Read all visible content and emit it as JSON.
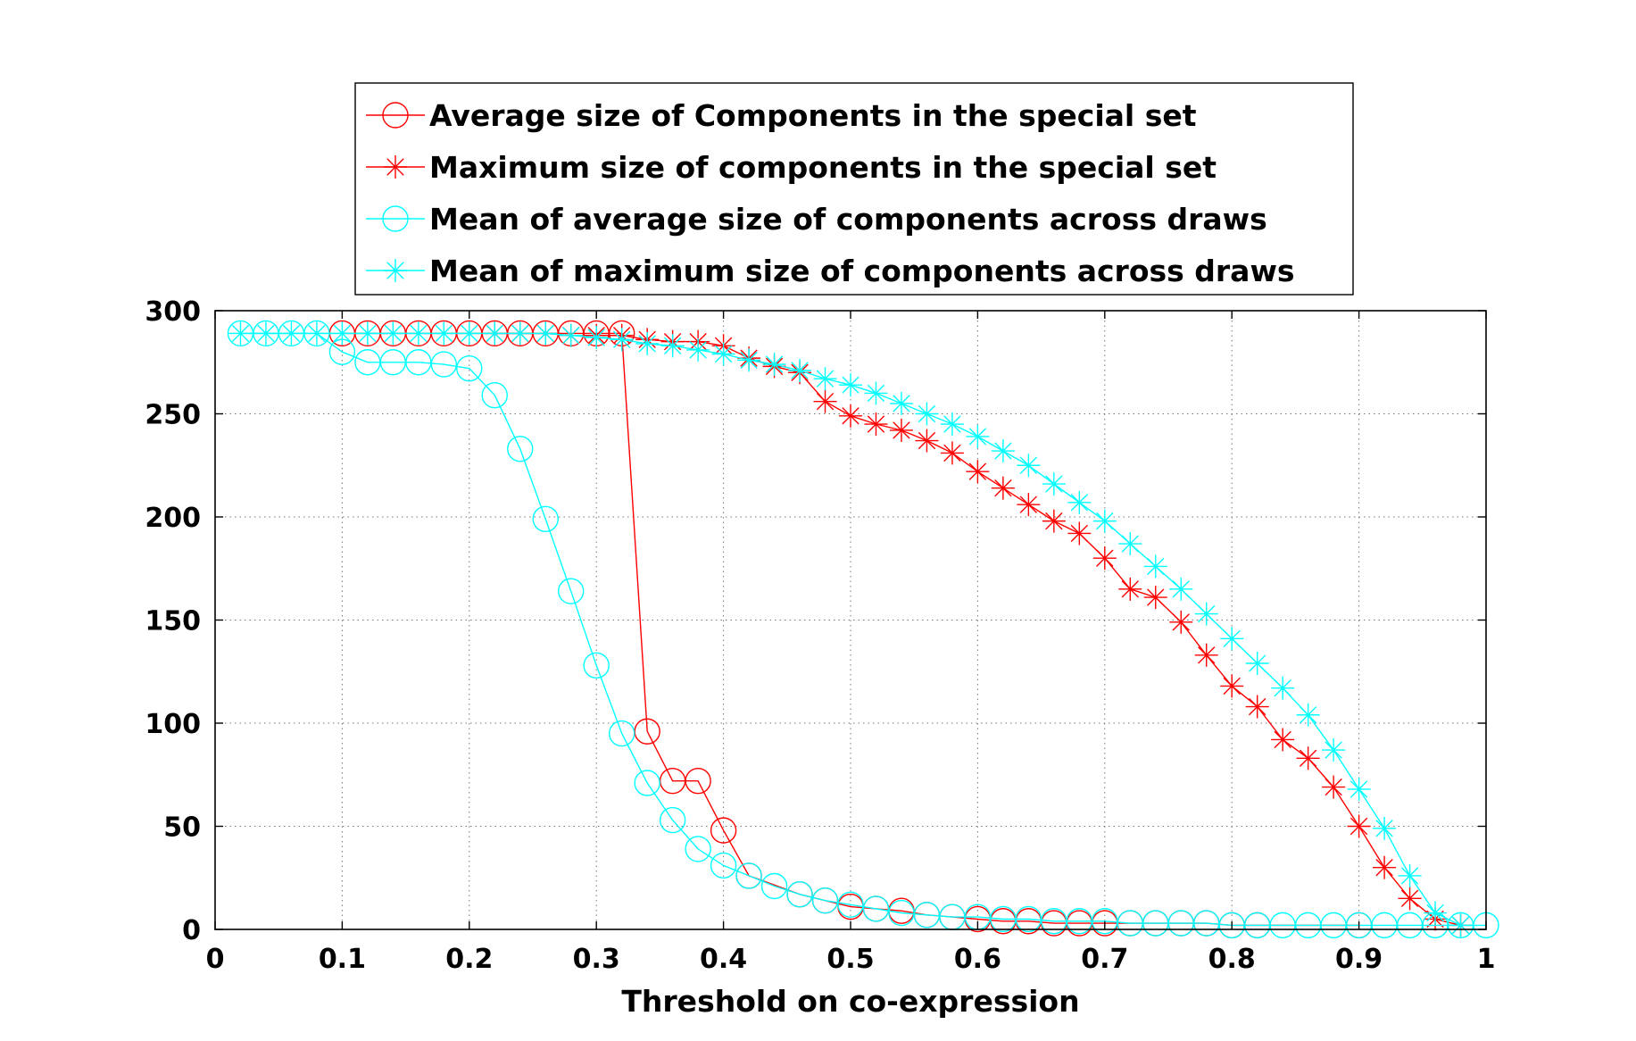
{
  "chart_data": {
    "type": "line",
    "title": "",
    "xlabel": "Threshold on co-expression",
    "ylabel": "",
    "xlim": [
      0,
      1
    ],
    "ylim": [
      0,
      300
    ],
    "xticks": [
      0,
      0.1,
      0.2,
      0.3,
      0.4,
      0.5,
      0.6,
      0.7,
      0.8,
      0.9,
      1
    ],
    "xtick_labels": [
      "0",
      "0.1",
      "0.2",
      "0.3",
      "0.4",
      "0.5",
      "0.6",
      "0.7",
      "0.8",
      "0.9",
      "1"
    ],
    "yticks": [
      0,
      50,
      100,
      150,
      200,
      250,
      300
    ],
    "ytick_labels": [
      "0",
      "50",
      "100",
      "150",
      "200",
      "250",
      "300"
    ],
    "grid": true,
    "legend_position": "top, above axes",
    "series": [
      {
        "name": "Average size of Components in the special set",
        "color": "#ff0000",
        "marker": "circle",
        "x": [
          0.1,
          0.12,
          0.14,
          0.16,
          0.18,
          0.2,
          0.22,
          0.24,
          0.26,
          0.28,
          0.3,
          0.32,
          0.34,
          0.36,
          0.38,
          0.4,
          0.42,
          0.46,
          0.48,
          0.5,
          0.52,
          0.54,
          0.56,
          0.58,
          0.6,
          0.62,
          0.64,
          0.66,
          0.68,
          0.7,
          0.72,
          0.74,
          0.76,
          0.78,
          0.8,
          0.82,
          0.9
        ],
        "y": [
          289,
          289,
          289,
          289,
          289,
          289,
          289,
          289,
          289,
          289,
          289,
          289,
          96,
          72,
          72,
          48,
          26,
          17,
          14,
          11,
          10,
          9,
          7,
          6,
          5,
          4,
          4,
          3,
          3,
          3,
          3,
          3,
          3,
          3,
          2,
          2,
          2
        ]
      },
      {
        "name": "Maximum size of components in the special set",
        "color": "#ff0000",
        "marker": "asterisk",
        "x": [
          0.22,
          0.24,
          0.26,
          0.28,
          0.3,
          0.32,
          0.34,
          0.36,
          0.38,
          0.4,
          0.42,
          0.44,
          0.46,
          0.48,
          0.5,
          0.52,
          0.54,
          0.56,
          0.58,
          0.6,
          0.62,
          0.64,
          0.66,
          0.68,
          0.7,
          0.72,
          0.74,
          0.76,
          0.78,
          0.8,
          0.82,
          0.84,
          0.86,
          0.88,
          0.9,
          0.92,
          0.94,
          0.96,
          0.98
        ],
        "y": [
          289,
          289,
          289,
          288,
          288,
          288,
          286,
          285,
          285,
          283,
          277,
          273,
          270,
          256,
          249,
          245,
          242,
          237,
          231,
          222,
          214,
          206,
          198,
          192,
          180,
          165,
          161,
          149,
          133,
          118,
          108,
          92,
          83,
          69,
          50,
          30,
          15,
          5,
          2
        ]
      },
      {
        "name": "Mean of average size of components across draws",
        "color": "#00ffff",
        "marker": "circle",
        "x": [
          0.02,
          0.04,
          0.06,
          0.08,
          0.1,
          0.12,
          0.14,
          0.16,
          0.18,
          0.2,
          0.22,
          0.24,
          0.26,
          0.28,
          0.3,
          0.32,
          0.34,
          0.36,
          0.38,
          0.4,
          0.42,
          0.44,
          0.46,
          0.48,
          0.5,
          0.52,
          0.54,
          0.56,
          0.58,
          0.6,
          0.62,
          0.64,
          0.66,
          0.68,
          0.7,
          0.72,
          0.74,
          0.76,
          0.78,
          0.8,
          0.82,
          0.84,
          0.86,
          0.88,
          0.9,
          0.92,
          0.94,
          0.96,
          0.98,
          1.0
        ],
        "y": [
          289,
          289,
          289,
          289,
          280,
          275,
          275,
          275,
          274,
          272,
          259,
          233,
          199,
          164,
          128,
          95,
          71,
          53,
          39,
          31,
          26,
          21,
          17,
          14,
          12,
          10,
          8,
          7,
          6,
          6,
          5,
          5,
          4,
          4,
          4,
          3,
          3,
          3,
          3,
          2,
          2,
          2,
          2,
          2,
          2,
          2,
          2,
          2,
          2,
          2
        ]
      },
      {
        "name": "Mean of maximum size of components across draws",
        "color": "#00ffff",
        "marker": "asterisk",
        "x": [
          0.02,
          0.04,
          0.06,
          0.08,
          0.1,
          0.12,
          0.14,
          0.16,
          0.18,
          0.2,
          0.22,
          0.24,
          0.26,
          0.28,
          0.3,
          0.32,
          0.34,
          0.36,
          0.38,
          0.4,
          0.42,
          0.44,
          0.46,
          0.48,
          0.5,
          0.52,
          0.54,
          0.56,
          0.58,
          0.6,
          0.62,
          0.64,
          0.66,
          0.68,
          0.7,
          0.72,
          0.74,
          0.76,
          0.78,
          0.8,
          0.82,
          0.84,
          0.86,
          0.88,
          0.9,
          0.92,
          0.94,
          0.96,
          0.98
        ],
        "y": [
          289,
          289,
          289,
          289,
          289,
          289,
          289,
          289,
          289,
          289,
          289,
          289,
          289,
          288,
          287,
          286,
          284,
          283,
          281,
          279,
          276,
          274,
          271,
          267,
          264,
          260,
          255,
          250,
          245,
          239,
          232,
          225,
          216,
          207,
          198,
          187,
          176,
          165,
          153,
          141,
          129,
          117,
          104,
          87,
          68,
          49,
          26,
          8,
          2
        ]
      }
    ]
  }
}
